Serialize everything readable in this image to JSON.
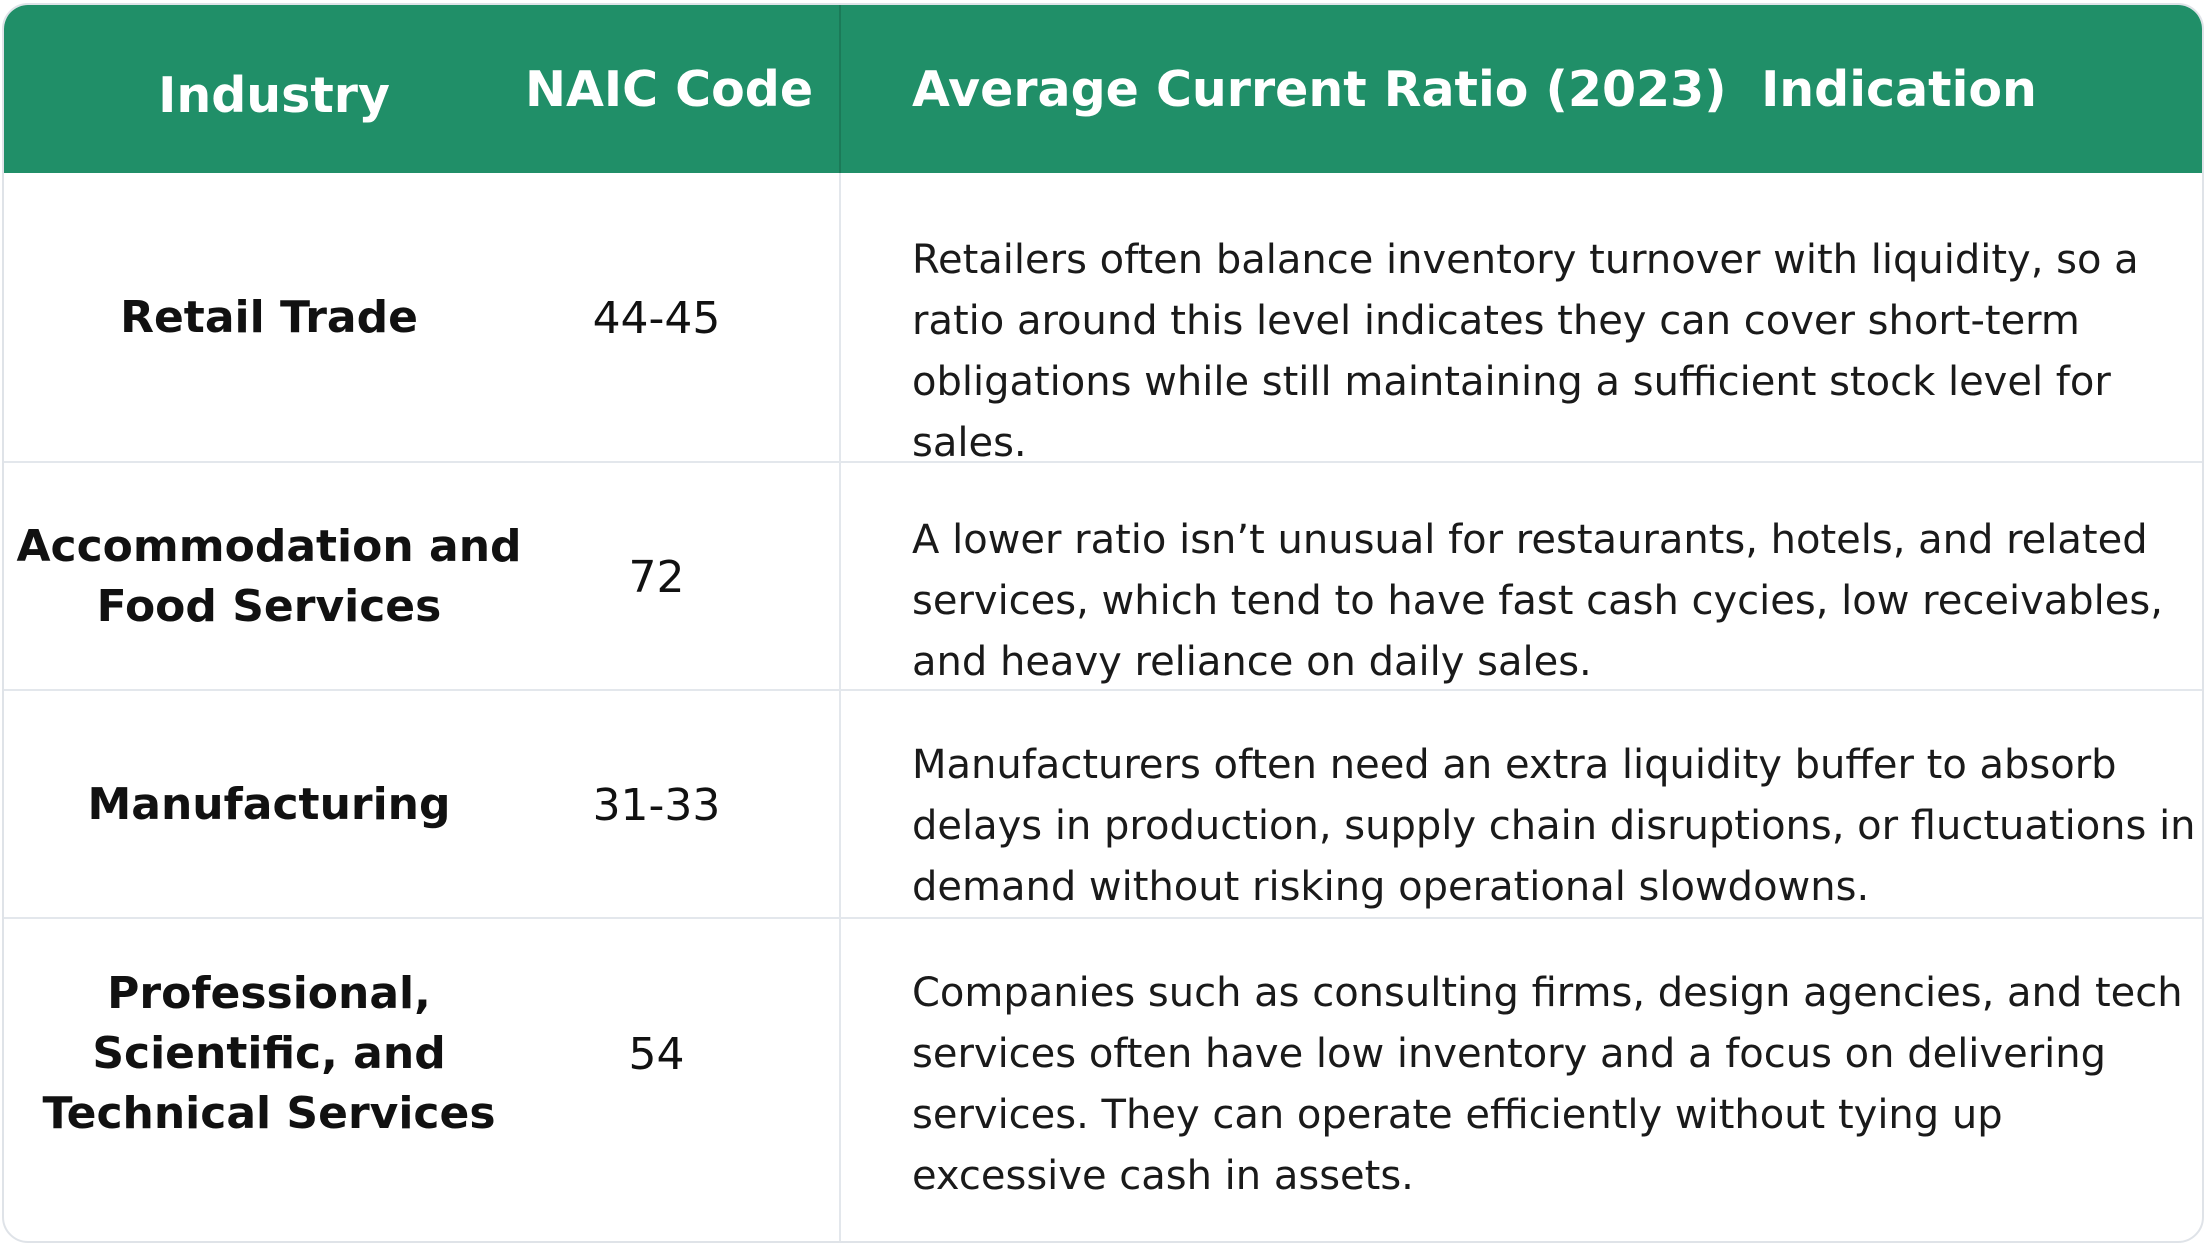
{
  "table": {
    "headers": [
      "Industry",
      "NAIC Code",
      "Average Current Ratio (2023)",
      "Indication"
    ],
    "rows": [
      {
        "industry": "Retail Trade",
        "code": "44-45",
        "indication": "Retailers often balance inventory turnover with liquidity, so a ratio around this level indicates they can cover short-term obligations while still maintaining a sufficient stock level for sales."
      },
      {
        "industry": "Accommodation and Food Services",
        "code": "72",
        "indication": "A lower ratio isn’t unusual for restaurants, hotels, and related services, which tend to have fast cash cycies, low receivables, and heavy reliance on daily sales."
      },
      {
        "industry": "Manufacturing",
        "code": "31-33",
        "indication": "Manufacturers often need an extra liquidity buffer to absorb delays in production, supply chain disruptions, or fluctuations in demand without risking operational slowdowns."
      },
      {
        "industry": "Professional, Scientific, and Technical Services",
        "code": "54",
        "indication": "Companies such as consulting firms, design agencies, and tech services often have low inventory and a focus on delivering services. They can operate efficiently without tying up excessive cash in assets."
      }
    ]
  },
  "colors": {
    "header_bg": "#208f68",
    "header_text": "#ffffff",
    "grid": "#e3e7ec"
  }
}
